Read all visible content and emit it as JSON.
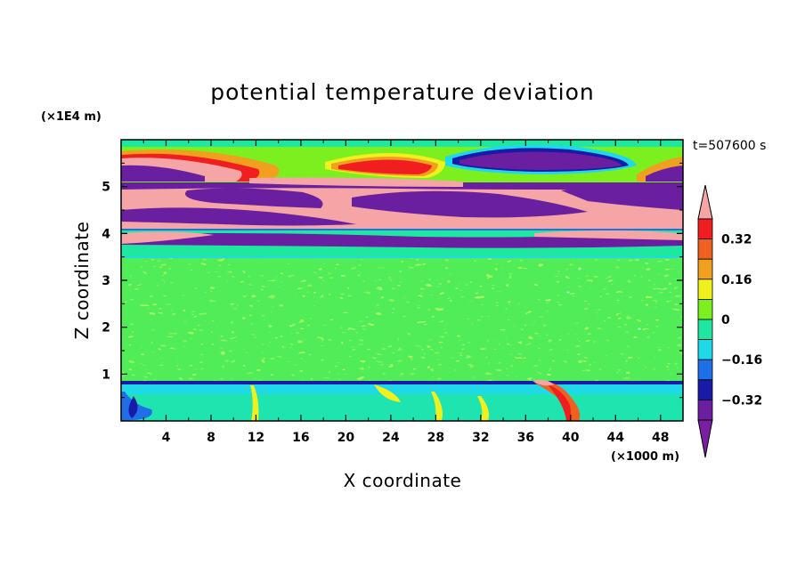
{
  "chart_data": {
    "type": "heatmap",
    "title": "potential temperature deviation",
    "xlabel": "X coordinate",
    "ylabel": "Z coordinate",
    "x_unit": "(×1000 m)",
    "y_unit": "(×1E4 m)",
    "time_label": "t=507600 s",
    "xlim": [
      0,
      50
    ],
    "ylim": [
      0,
      6
    ],
    "x_ticks": [
      "4",
      "8",
      "12",
      "16",
      "20",
      "24",
      "28",
      "32",
      "36",
      "40",
      "44",
      "48"
    ],
    "y_ticks": [
      "1",
      "2",
      "3",
      "4",
      "5"
    ],
    "colorbar_labels": [
      "0.32",
      "0.16",
      "0",
      "−0.16",
      "−0.32"
    ],
    "colorbar_levels": [
      -0.4,
      -0.32,
      -0.24,
      -0.16,
      -0.08,
      0,
      0.08,
      0.16,
      0.24,
      0.32,
      0.4
    ],
    "colors": {
      "over": "#f5a5a5",
      "under": "#7a1fa3",
      "bins": [
        "#6a1fa0",
        "#1a1aa8",
        "#1f6fe8",
        "#1fd8e8",
        "#1ee8a0",
        "#7cf01e",
        "#f0f01e",
        "#f0a01e",
        "#f0601e",
        "#f01e1e"
      ]
    },
    "regions_note": "Upper layer (z 4–6) dominated by alternating over-range pink and under-range purple bands with orange/yellow lens shapes near the top; mid-levels (z 1–4) mostly green (near 0) with cyan patches; a thin cyan/blue layer near z≈0.85 with mixed blue, yellow and red plumes near the surface."
  }
}
